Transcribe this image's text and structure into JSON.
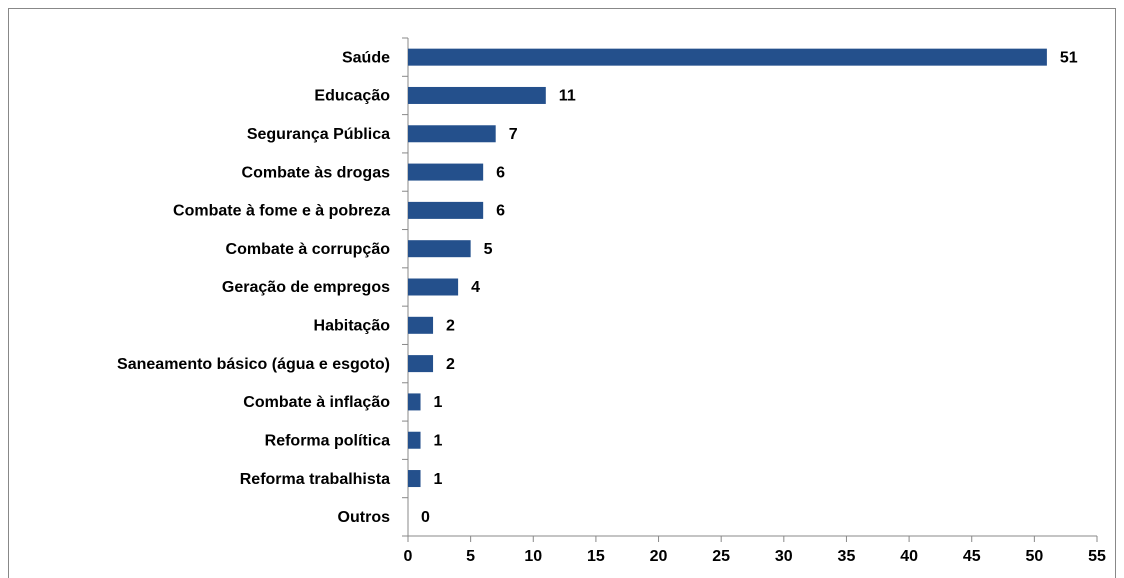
{
  "chart_data": {
    "type": "bar",
    "orientation": "horizontal",
    "categories": [
      "Saúde",
      "Educação",
      "Segurança Pública",
      "Combate às drogas",
      "Combate à fome e à pobreza",
      "Combate à corrupção",
      "Geração de empregos",
      "Habitação",
      "Saneamento básico (água e esgoto)",
      "Combate à inflação",
      "Reforma política",
      "Reforma trabalhista",
      "Outros"
    ],
    "values": [
      51,
      11,
      7,
      6,
      6,
      5,
      4,
      2,
      2,
      1,
      1,
      1,
      0
    ],
    "color": "#24508c",
    "xlim": [
      0,
      55
    ],
    "xticks": [
      0,
      5,
      10,
      15,
      20,
      25,
      30,
      35,
      40,
      45,
      50,
      55
    ],
    "grid": false
  }
}
